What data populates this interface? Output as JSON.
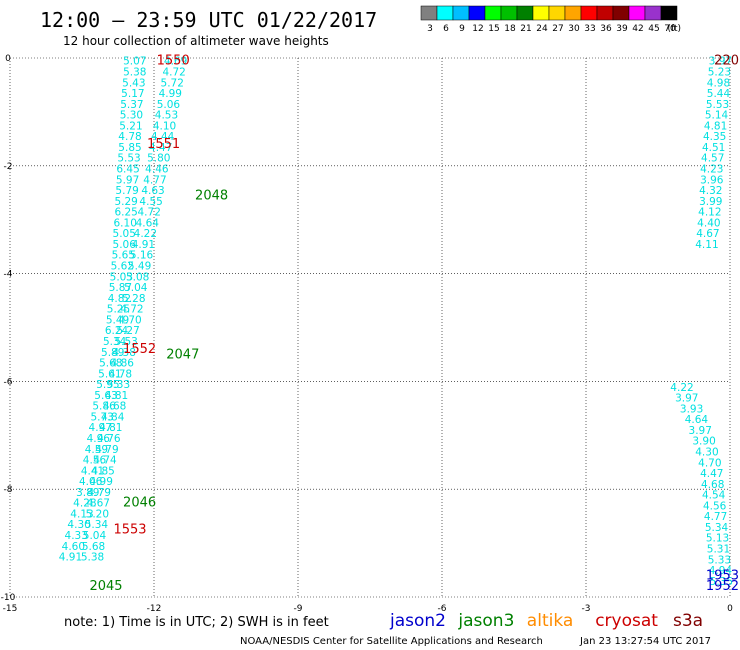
{
  "header": {
    "title": "12:00 – 23:59 UTC 01/22/2017",
    "subtitle": "12 hour collection of altimeter wave heights"
  },
  "colorbar": {
    "unit_label": "(ft)",
    "ticks": [
      "3",
      "6",
      "9",
      "12",
      "15",
      "18",
      "21",
      "24",
      "27",
      "30",
      "33",
      "36",
      "39",
      "42",
      "45",
      "70"
    ],
    "colors": [
      "#808080",
      "#00ffff",
      "#00bfff",
      "#0000ff",
      "#00ff00",
      "#00c000",
      "#008000",
      "#ffff00",
      "#ffd700",
      "#ffa500",
      "#ff0000",
      "#c00000",
      "#800000",
      "#ff00ff",
      "#9932cc",
      "#000000"
    ]
  },
  "footer": {
    "note": "note: 1) Time is in UTC; 2) SWH is in feet",
    "credit": "NOAA/NESDIS Center for Satellite Applications and Research",
    "timestamp": "Jan 23 13:27:54 UTC 2017"
  },
  "legend": [
    {
      "name": "jason2",
      "color": "#0000cc"
    },
    {
      "name": "jason3",
      "color": "#008000"
    },
    {
      "name": "altika",
      "color": "#ff8c00"
    },
    {
      "name": "cryosat",
      "color": "#cc0000"
    },
    {
      "name": "s3a",
      "color": "#800000"
    }
  ],
  "chart_data": {
    "type": "scatter",
    "xlim": [
      -15,
      0
    ],
    "ylim": [
      -10,
      0
    ],
    "xticks": [
      "-15",
      "-12",
      "-9",
      "-6",
      "-3",
      "0"
    ],
    "yticks": [
      "0",
      "-2",
      "-4",
      "-6",
      "-8",
      "-10"
    ],
    "grid": true,
    "value_color": "#00e0e0",
    "series": [
      {
        "name": "jason2",
        "color": "#0000cc",
        "points": [
          {
            "x": -12.4,
            "y": -0.05,
            "v": "5.07"
          },
          {
            "x": -12.4,
            "y": -0.25,
            "v": "5.38"
          },
          {
            "x": -12.42,
            "y": -0.45,
            "v": "5.43"
          },
          {
            "x": -12.44,
            "y": -0.65,
            "v": "5.17"
          },
          {
            "x": -12.46,
            "y": -0.85,
            "v": "5.37"
          },
          {
            "x": -12.47,
            "y": -1.05,
            "v": "5.30"
          },
          {
            "x": -12.48,
            "y": -1.25,
            "v": "5.21"
          },
          {
            "x": -12.5,
            "y": -1.45,
            "v": "4.78"
          },
          {
            "x": -12.5,
            "y": -1.65,
            "v": "5.85"
          },
          {
            "x": -12.52,
            "y": -1.85,
            "v": "5.53"
          },
          {
            "x": -12.54,
            "y": -2.05,
            "v": "6.45"
          },
          {
            "x": -12.55,
            "y": -2.25,
            "v": "5.97"
          },
          {
            "x": -12.56,
            "y": -2.45,
            "v": "5.79"
          },
          {
            "x": -12.58,
            "y": -2.65,
            "v": "5.29"
          },
          {
            "x": -12.58,
            "y": -2.85,
            "v": "6.25"
          },
          {
            "x": -12.6,
            "y": -3.05,
            "v": "6.10"
          },
          {
            "x": -12.62,
            "y": -3.25,
            "v": "5.05"
          },
          {
            "x": -12.62,
            "y": -3.45,
            "v": "5.06"
          },
          {
            "x": -12.64,
            "y": -3.65,
            "v": "5.65"
          },
          {
            "x": -12.66,
            "y": -3.85,
            "v": "5.62"
          },
          {
            "x": -12.68,
            "y": -4.05,
            "v": "5.03"
          },
          {
            "x": -12.7,
            "y": -4.25,
            "v": "5.87"
          },
          {
            "x": -12.72,
            "y": -4.45,
            "v": "4.82"
          },
          {
            "x": -12.74,
            "y": -4.65,
            "v": "5.25"
          },
          {
            "x": -12.76,
            "y": -4.85,
            "v": "5.49"
          },
          {
            "x": -12.78,
            "y": -5.05,
            "v": "6.24"
          },
          {
            "x": -12.82,
            "y": -5.25,
            "v": "5.34"
          },
          {
            "x": -12.86,
            "y": -5.45,
            "v": "5.89"
          },
          {
            "x": -12.9,
            "y": -5.65,
            "v": "5.68"
          },
          {
            "x": -12.92,
            "y": -5.85,
            "v": "5.61"
          },
          {
            "x": -12.96,
            "y": -6.05,
            "v": "5.95"
          },
          {
            "x": -13.0,
            "y": -6.25,
            "v": "5.63"
          },
          {
            "x": -13.04,
            "y": -6.45,
            "v": "5.86"
          },
          {
            "x": -13.08,
            "y": -6.65,
            "v": "5.73"
          },
          {
            "x": -13.12,
            "y": -6.85,
            "v": "4.97"
          },
          {
            "x": -13.16,
            "y": -7.05,
            "v": "4.96"
          },
          {
            "x": -13.2,
            "y": -7.25,
            "v": "4.59"
          },
          {
            "x": -13.24,
            "y": -7.45,
            "v": "4.56"
          },
          {
            "x": -13.28,
            "y": -7.65,
            "v": "4.41"
          },
          {
            "x": -13.32,
            "y": -7.85,
            "v": "4.06"
          },
          {
            "x": -13.38,
            "y": -8.05,
            "v": "3.89"
          },
          {
            "x": -13.44,
            "y": -8.25,
            "v": "4.28"
          },
          {
            "x": -13.5,
            "y": -8.45,
            "v": "4.13"
          },
          {
            "x": -13.56,
            "y": -8.65,
            "v": "4.30"
          },
          {
            "x": -13.62,
            "y": -8.85,
            "v": "4.33"
          },
          {
            "x": -13.68,
            "y": -9.05,
            "v": "4.60"
          },
          {
            "x": -13.74,
            "y": -9.25,
            "v": "4.91"
          },
          {
            "x": -0.2,
            "y": -0.05,
            "v": "3.97"
          },
          {
            "x": -0.22,
            "y": -0.25,
            "v": "5.23"
          },
          {
            "x": -0.24,
            "y": -0.45,
            "v": "4.98"
          },
          {
            "x": -0.24,
            "y": -0.65,
            "v": "5.44"
          },
          {
            "x": -0.26,
            "y": -0.85,
            "v": "5.53"
          },
          {
            "x": -0.28,
            "y": -1.05,
            "v": "5.14"
          },
          {
            "x": -0.3,
            "y": -1.25,
            "v": "4.81"
          },
          {
            "x": -0.32,
            "y": -1.45,
            "v": "4.35"
          },
          {
            "x": -0.34,
            "y": -1.65,
            "v": "4.51"
          },
          {
            "x": -0.36,
            "y": -1.85,
            "v": "4.57"
          },
          {
            "x": -0.38,
            "y": -2.05,
            "v": "4.23"
          },
          {
            "x": -0.38,
            "y": -2.25,
            "v": "3.96"
          },
          {
            "x": -0.4,
            "y": -2.45,
            "v": "4.32"
          },
          {
            "x": -0.4,
            "y": -2.65,
            "v": "3.99"
          },
          {
            "x": -0.42,
            "y": -2.85,
            "v": "4.12"
          },
          {
            "x": -0.44,
            "y": -3.05,
            "v": "4.40"
          },
          {
            "x": -0.46,
            "y": -3.25,
            "v": "4.67"
          },
          {
            "x": -0.48,
            "y": -3.45,
            "v": "4.11"
          }
        ]
      },
      {
        "name": "jason3",
        "color": "#008000",
        "points": [
          {
            "x": -11.55,
            "y": -0.05,
            "v": "4.69"
          },
          {
            "x": -11.58,
            "y": -0.25,
            "v": "4.72"
          },
          {
            "x": -11.62,
            "y": -0.45,
            "v": "5.72"
          },
          {
            "x": -11.66,
            "y": -0.65,
            "v": "4.99"
          },
          {
            "x": -11.7,
            "y": -0.85,
            "v": "5.06"
          },
          {
            "x": -11.74,
            "y": -1.05,
            "v": "4.53"
          },
          {
            "x": -11.78,
            "y": -1.25,
            "v": "4.10"
          },
          {
            "x": -11.82,
            "y": -1.45,
            "v": "4.44"
          },
          {
            "x": -11.86,
            "y": -1.65,
            "v": "4.47"
          },
          {
            "x": -11.9,
            "y": -1.85,
            "v": "5.80"
          },
          {
            "x": -11.94,
            "y": -2.05,
            "v": "4.46"
          },
          {
            "x": -11.98,
            "y": -2.25,
            "v": "4.77"
          },
          {
            "x": -12.02,
            "y": -2.45,
            "v": "4.63"
          },
          {
            "x": -12.06,
            "y": -2.65,
            "v": "4.55"
          },
          {
            "x": -12.1,
            "y": -2.85,
            "v": "4.72"
          },
          {
            "x": -12.14,
            "y": -3.05,
            "v": "4.64"
          },
          {
            "x": -12.18,
            "y": -3.25,
            "v": "4.22"
          },
          {
            "x": -12.22,
            "y": -3.45,
            "v": "4.91"
          },
          {
            "x": -12.26,
            "y": -3.65,
            "v": "5.16"
          },
          {
            "x": -12.3,
            "y": -3.85,
            "v": "5.49"
          },
          {
            "x": -12.34,
            "y": -4.05,
            "v": "5.08"
          },
          {
            "x": -12.38,
            "y": -4.25,
            "v": "5.04"
          },
          {
            "x": -12.42,
            "y": -4.45,
            "v": "5.28"
          },
          {
            "x": -12.46,
            "y": -4.65,
            "v": "4.72"
          },
          {
            "x": -12.5,
            "y": -4.85,
            "v": "4.70"
          },
          {
            "x": -12.54,
            "y": -5.05,
            "v": "5.27"
          },
          {
            "x": -12.58,
            "y": -5.25,
            "v": "5.53"
          },
          {
            "x": -12.62,
            "y": -5.45,
            "v": "4.38"
          },
          {
            "x": -12.66,
            "y": -5.65,
            "v": "4.86"
          },
          {
            "x": -12.7,
            "y": -5.85,
            "v": "4.78"
          },
          {
            "x": -12.74,
            "y": -6.05,
            "v": "5.33"
          },
          {
            "x": -12.78,
            "y": -6.25,
            "v": "4.81"
          },
          {
            "x": -12.82,
            "y": -6.45,
            "v": "4.68"
          },
          {
            "x": -12.86,
            "y": -6.65,
            "v": "4.84"
          },
          {
            "x": -12.9,
            "y": -6.85,
            "v": "4.81"
          },
          {
            "x": -12.94,
            "y": -7.05,
            "v": "4.76"
          },
          {
            "x": -12.98,
            "y": -7.25,
            "v": "4.79"
          },
          {
            "x": -13.02,
            "y": -7.45,
            "v": "4.74"
          },
          {
            "x": -13.06,
            "y": -7.65,
            "v": "4.85"
          },
          {
            "x": -13.1,
            "y": -7.85,
            "v": "4.99"
          },
          {
            "x": -13.14,
            "y": -8.05,
            "v": "4.79"
          },
          {
            "x": -13.16,
            "y": -8.25,
            "v": "4.67"
          },
          {
            "x": -13.18,
            "y": -8.45,
            "v": "5.20"
          },
          {
            "x": -13.2,
            "y": -8.65,
            "v": "5.34"
          },
          {
            "x": -13.24,
            "y": -8.85,
            "v": "5.04"
          },
          {
            "x": -13.26,
            "y": -9.05,
            "v": "5.68"
          },
          {
            "x": -13.28,
            "y": -9.25,
            "v": "5.38"
          },
          {
            "x": -1.0,
            "y": -6.1,
            "v": "4.22"
          },
          {
            "x": -0.9,
            "y": -6.3,
            "v": "3.97"
          },
          {
            "x": -0.8,
            "y": -6.5,
            "v": "3.93"
          },
          {
            "x": -0.7,
            "y": -6.7,
            "v": "4.64"
          },
          {
            "x": -0.62,
            "y": -6.9,
            "v": "3.97"
          },
          {
            "x": -0.54,
            "y": -7.1,
            "v": "3.90"
          },
          {
            "x": -0.48,
            "y": -7.3,
            "v": "4.30"
          },
          {
            "x": -0.42,
            "y": -7.5,
            "v": "4.70"
          },
          {
            "x": -0.38,
            "y": -7.7,
            "v": "4.47"
          },
          {
            "x": -0.36,
            "y": -7.9,
            "v": "4.68"
          },
          {
            "x": -0.34,
            "y": -8.1,
            "v": "4.54"
          },
          {
            "x": -0.32,
            "y": -8.3,
            "v": "4.56"
          },
          {
            "x": -0.3,
            "y": -8.5,
            "v": "4.77"
          },
          {
            "x": -0.28,
            "y": -8.7,
            "v": "5.34"
          },
          {
            "x": -0.26,
            "y": -8.9,
            "v": "5.13"
          },
          {
            "x": -0.24,
            "y": -9.1,
            "v": "5.31"
          },
          {
            "x": -0.22,
            "y": -9.3,
            "v": "5.33"
          },
          {
            "x": -0.2,
            "y": -9.5,
            "v": "4.94"
          },
          {
            "x": -0.18,
            "y": -9.7,
            "v": "5.35"
          }
        ]
      }
    ],
    "pass_labels": [
      {
        "text": "1550",
        "x": -11.6,
        "y": -0.05,
        "color": "#cc0000"
      },
      {
        "text": "1551",
        "x": -11.8,
        "y": -1.6,
        "color": "#cc0000"
      },
      {
        "text": "2048",
        "x": -10.8,
        "y": -2.55,
        "color": "#008000"
      },
      {
        "text": "1552",
        "x": -12.3,
        "y": -5.4,
        "color": "#cc0000"
      },
      {
        "text": "2047",
        "x": -11.4,
        "y": -5.5,
        "color": "#008000"
      },
      {
        "text": "2046",
        "x": -12.3,
        "y": -8.25,
        "color": "#008000"
      },
      {
        "text": "1553",
        "x": -12.5,
        "y": -8.75,
        "color": "#cc0000"
      },
      {
        "text": "2045",
        "x": -13.0,
        "y": -9.8,
        "color": "#008000"
      },
      {
        "text": "220",
        "x": 0.0,
        "y": -0.05,
        "color": "#800000"
      },
      {
        "text": "1953",
        "x": 0.0,
        "y": -9.6,
        "color": "#0000cc"
      },
      {
        "text": "1952",
        "x": -0.05,
        "y": -9.8,
        "color": "#0000cc"
      }
    ]
  }
}
